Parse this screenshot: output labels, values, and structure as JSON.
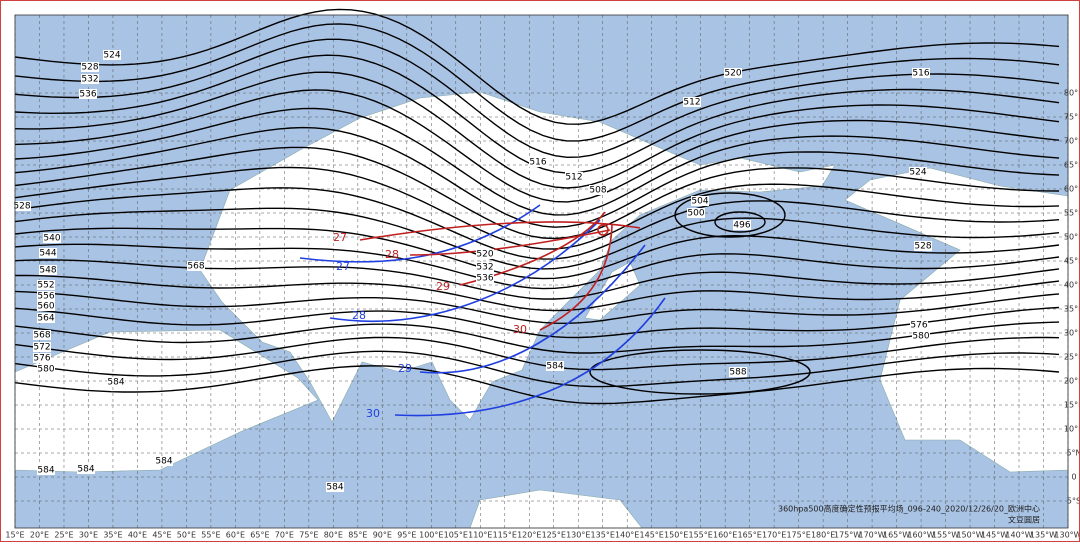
{
  "map": {
    "contour_labels": [
      "524",
      "528",
      "532",
      "536",
      "520",
      "516",
      "512",
      "516",
      "512",
      "508",
      "504",
      "500",
      "496",
      "524",
      "528",
      "540",
      "544",
      "548",
      "552",
      "556",
      "560",
      "564",
      "568",
      "572",
      "576",
      "580",
      "584",
      "568",
      "528",
      "576",
      "580",
      "584",
      "588",
      "584",
      "584",
      "584",
      "584",
      "520",
      "532",
      "536"
    ],
    "front_labels": {
      "blue": [
        "27",
        "28",
        "29",
        "30"
      ],
      "red": [
        "27",
        "28",
        "29",
        "30"
      ]
    },
    "longitude_labels": [
      "15°E",
      "20°E",
      "25°E",
      "30°E",
      "35°E",
      "40°E",
      "45°E",
      "50°E",
      "55°E",
      "60°E",
      "65°E",
      "70°E",
      "75°E",
      "80°E",
      "85°E",
      "90°E",
      "95°E",
      "100°E",
      "105°E",
      "110°E",
      "115°E",
      "120°E",
      "125°E",
      "130°E",
      "135°E",
      "140°E",
      "145°E",
      "150°E",
      "155°E",
      "160°E",
      "165°E",
      "170°E",
      "175°E",
      "180°E",
      "175°W",
      "170°W",
      "165°W",
      "160°W",
      "155°W",
      "150°W",
      "145°W",
      "140°W",
      "135°W",
      "130°W"
    ],
    "latitude_labels": [
      "80°N",
      "75°N",
      "70°N",
      "65°N",
      "60°N",
      "55°N",
      "50°N",
      "45°N",
      "40°N",
      "35°N",
      "30°N",
      "25°N",
      "20°N",
      "15°N",
      "10°N",
      "5°N",
      "0",
      "5°S"
    ],
    "footer": {
      "caption": "360hpa500高度确定性预报平均场_096-240_2020/12/26/20_欧洲中心",
      "source": "文豆圆居"
    }
  }
}
